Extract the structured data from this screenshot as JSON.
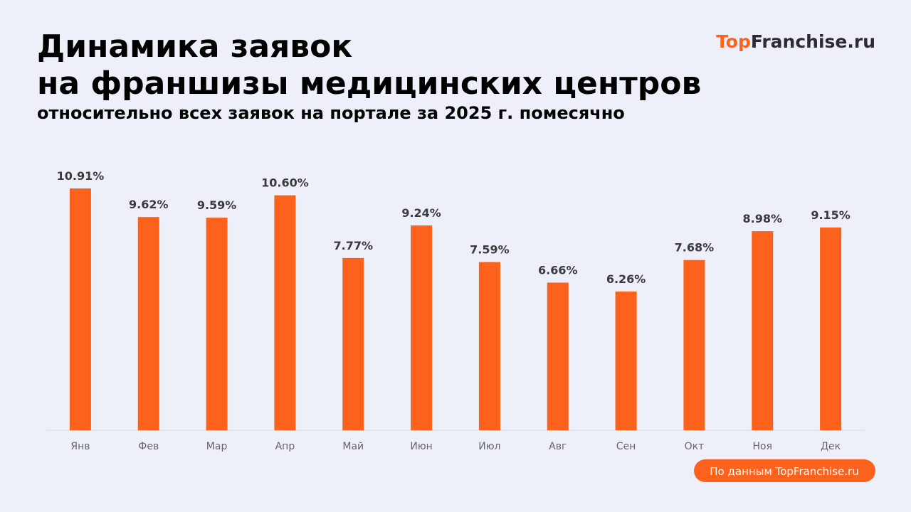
{
  "chart_data": {
    "type": "bar",
    "title": [
      "Динамика заявок",
      "на франшизы медицинских центров"
    ],
    "subtitle": "относительно всех заявок на портале за 2025 г. помесячно",
    "logo": [
      "Top",
      "Franchise.ru"
    ],
    "source": "По данным TopFranchise.ru",
    "categories": [
      "Янв",
      "Фев",
      "Мар",
      "Апр",
      "Май",
      "Июн",
      "Июл",
      "Авг",
      "Сен",
      "Окт",
      "Ноя",
      "Дек"
    ],
    "values": [
      10.91,
      9.62,
      9.59,
      10.6,
      7.77,
      9.24,
      7.59,
      6.66,
      6.26,
      7.68,
      8.98,
      9.15
    ],
    "value_labels": [
      "10.91%",
      "9.62%",
      "9.59%",
      "10.60%",
      "7.77%",
      "9.24%",
      "7.59%",
      "6.66%",
      "6.26%",
      "7.68%",
      "8.98%",
      "9.15%"
    ],
    "color": "#fd621d"
  }
}
